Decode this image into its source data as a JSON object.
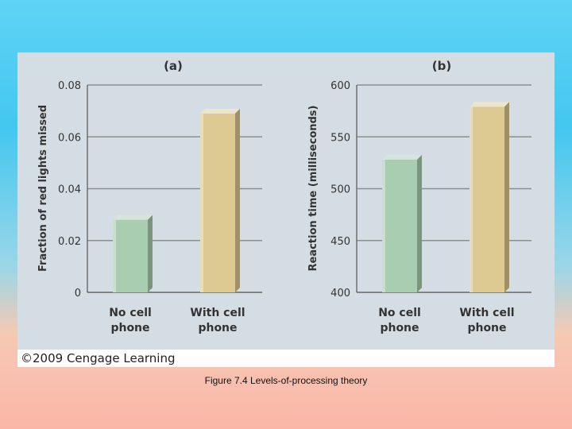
{
  "figure": {
    "caption": "Figure 7.4   Levels-of-processing theory",
    "credit": "©2009 Cengage Learning"
  },
  "chart_data": [
    {
      "type": "bar",
      "panel_label": "(a)",
      "ylabel": "Fraction of red lights missed",
      "categories": [
        "No cell\nphone",
        "With cell\nphone"
      ],
      "values": [
        0.028,
        0.069
      ],
      "ylim": [
        0,
        0.08
      ],
      "yticks": [
        0,
        0.02,
        0.04,
        0.06,
        0.08
      ],
      "ytick_labels": [
        "0",
        "0.02",
        "0.04",
        "0.06",
        "0.08"
      ],
      "grid": true,
      "bar_colors": [
        "#a9cdb0",
        "#dcca92"
      ]
    },
    {
      "type": "bar",
      "panel_label": "(b)",
      "ylabel": "Reaction time (milliseconds)",
      "categories": [
        "No cell\nphone",
        "With cell\nphone"
      ],
      "values": [
        528,
        579
      ],
      "ylim": [
        400,
        600
      ],
      "yticks": [
        400,
        450,
        500,
        550,
        600
      ],
      "ytick_labels": [
        "400",
        "450",
        "500",
        "550",
        "600"
      ],
      "grid": true,
      "bar_colors": [
        "#a9cdb0",
        "#dcca92"
      ]
    }
  ]
}
